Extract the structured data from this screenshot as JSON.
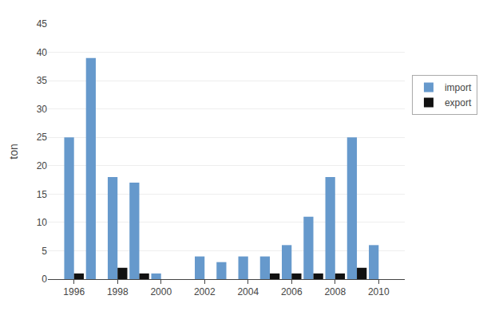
{
  "chart_data": {
    "type": "bar",
    "x": [
      1996,
      1997,
      1998,
      1999,
      2000,
      2001,
      2002,
      2003,
      2004,
      2005,
      2006,
      2007,
      2008,
      2009,
      2010
    ],
    "series": [
      {
        "name": "import",
        "color": "#6699CC",
        "values": [
          25,
          39,
          18,
          17,
          1,
          0,
          4,
          3,
          4,
          4,
          6,
          11,
          18,
          25,
          6
        ]
      },
      {
        "name": "export",
        "color": "#111111",
        "values": [
          1,
          0,
          2,
          1,
          0,
          0,
          0,
          0,
          0,
          1,
          1,
          1,
          1,
          2,
          0
        ]
      }
    ],
    "ylabel": "ton",
    "xlim": [
      1994.8,
      2011.2
    ],
    "xticks": [
      1996,
      1998,
      2000,
      2002,
      2004,
      2006,
      2008,
      2010
    ],
    "ylim": [
      0,
      45
    ],
    "yticks": [
      0,
      5,
      10,
      15,
      20,
      25,
      30,
      35,
      40,
      45
    ],
    "grid": "y",
    "legend": "right"
  }
}
